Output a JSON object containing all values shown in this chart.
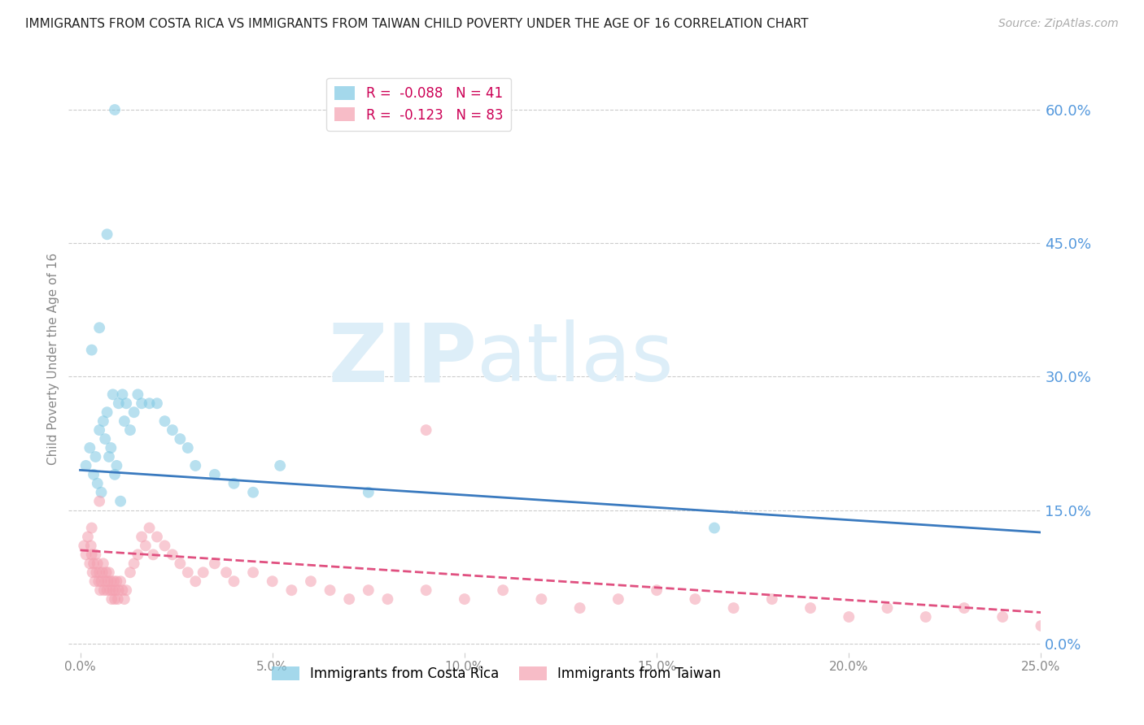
{
  "title": "IMMIGRANTS FROM COSTA RICA VS IMMIGRANTS FROM TAIWAN CHILD POVERTY UNDER THE AGE OF 16 CORRELATION CHART",
  "source": "Source: ZipAtlas.com",
  "ylabel": "Child Poverty Under the Age of 16",
  "xlabel_ticks": [
    0.0,
    5.0,
    10.0,
    15.0,
    20.0,
    25.0
  ],
  "yticks_right": [
    0.0,
    15.0,
    30.0,
    45.0,
    60.0
  ],
  "xlim": [
    -0.3,
    25.0
  ],
  "ylim": [
    -1.0,
    65.0
  ],
  "costa_rica_R": -0.088,
  "costa_rica_N": 41,
  "taiwan_R": -0.123,
  "taiwan_N": 83,
  "color_costa_rica": "#7ec8e3",
  "color_taiwan": "#f4a0b0",
  "color_trend_costa_rica": "#3a7abf",
  "color_trend_taiwan": "#e05080",
  "watermark_zip": "ZIP",
  "watermark_atlas": "atlas",
  "watermark_color": "#ddeef8",
  "title_color": "#222222",
  "right_tick_color": "#5599dd",
  "legend_text_color": "#cc0066",
  "costa_rica_x": [
    0.15,
    0.25,
    0.35,
    0.4,
    0.45,
    0.5,
    0.55,
    0.6,
    0.65,
    0.7,
    0.75,
    0.8,
    0.85,
    0.9,
    0.95,
    1.0,
    1.05,
    1.1,
    1.15,
    1.2,
    1.3,
    1.4,
    1.5,
    1.6,
    1.8,
    2.0,
    2.2,
    2.4,
    2.6,
    2.8,
    3.0,
    3.5,
    4.0,
    4.5,
    5.2,
    7.5,
    16.5,
    0.3,
    0.5,
    0.7,
    0.9
  ],
  "costa_rica_y": [
    20.0,
    22.0,
    19.0,
    21.0,
    18.0,
    24.0,
    17.0,
    25.0,
    23.0,
    26.0,
    21.0,
    22.0,
    28.0,
    19.0,
    20.0,
    27.0,
    16.0,
    28.0,
    25.0,
    27.0,
    24.0,
    26.0,
    28.0,
    27.0,
    27.0,
    27.0,
    25.0,
    24.0,
    23.0,
    22.0,
    20.0,
    19.0,
    18.0,
    17.0,
    20.0,
    17.0,
    13.0,
    33.0,
    35.5,
    46.0,
    60.0
  ],
  "taiwan_x": [
    0.1,
    0.15,
    0.2,
    0.25,
    0.28,
    0.3,
    0.32,
    0.35,
    0.38,
    0.4,
    0.42,
    0.45,
    0.48,
    0.5,
    0.52,
    0.55,
    0.58,
    0.6,
    0.62,
    0.65,
    0.68,
    0.7,
    0.72,
    0.75,
    0.78,
    0.8,
    0.82,
    0.85,
    0.88,
    0.9,
    0.92,
    0.95,
    0.98,
    1.0,
    1.05,
    1.1,
    1.15,
    1.2,
    1.3,
    1.4,
    1.5,
    1.6,
    1.7,
    1.8,
    1.9,
    2.0,
    2.2,
    2.4,
    2.6,
    2.8,
    3.0,
    3.2,
    3.5,
    3.8,
    4.0,
    4.5,
    5.0,
    5.5,
    6.0,
    6.5,
    7.0,
    7.5,
    8.0,
    9.0,
    10.0,
    11.0,
    12.0,
    13.0,
    14.0,
    15.0,
    16.0,
    17.0,
    18.0,
    19.0,
    20.0,
    21.0,
    22.0,
    23.0,
    24.0,
    25.0,
    0.3,
    0.5,
    9.0
  ],
  "taiwan_y": [
    11.0,
    10.0,
    12.0,
    9.0,
    11.0,
    10.0,
    8.0,
    9.0,
    7.0,
    10.0,
    8.0,
    9.0,
    7.0,
    8.0,
    6.0,
    7.0,
    8.0,
    9.0,
    6.0,
    7.0,
    8.0,
    6.0,
    7.0,
    8.0,
    6.0,
    7.0,
    5.0,
    6.0,
    7.0,
    5.0,
    6.0,
    7.0,
    5.0,
    6.0,
    7.0,
    6.0,
    5.0,
    6.0,
    8.0,
    9.0,
    10.0,
    12.0,
    11.0,
    13.0,
    10.0,
    12.0,
    11.0,
    10.0,
    9.0,
    8.0,
    7.0,
    8.0,
    9.0,
    8.0,
    7.0,
    8.0,
    7.0,
    6.0,
    7.0,
    6.0,
    5.0,
    6.0,
    5.0,
    6.0,
    5.0,
    6.0,
    5.0,
    4.0,
    5.0,
    6.0,
    5.0,
    4.0,
    5.0,
    4.0,
    3.0,
    4.0,
    3.0,
    4.0,
    3.0,
    2.0,
    13.0,
    16.0,
    24.0
  ],
  "trend_cr_x0": 0.0,
  "trend_cr_y0": 19.5,
  "trend_cr_x1": 25.0,
  "trend_cr_y1": 12.5,
  "trend_tw_x0": 0.0,
  "trend_tw_y0": 10.5,
  "trend_tw_x1": 25.0,
  "trend_tw_y1": 3.5
}
